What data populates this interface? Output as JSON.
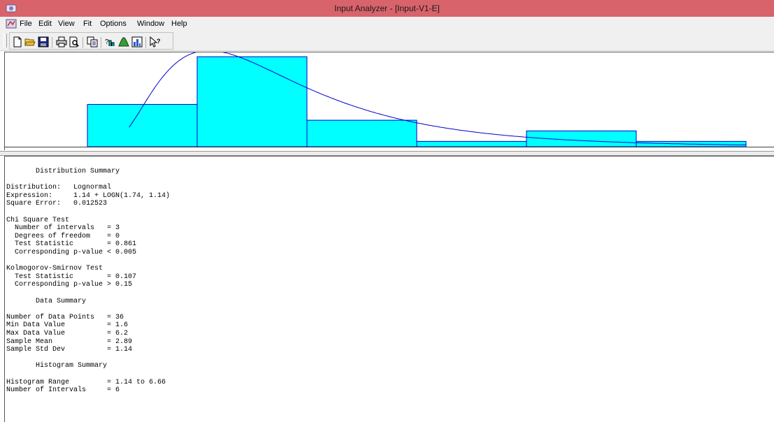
{
  "window": {
    "title": "Input Analyzer - [Input-V1-E]"
  },
  "menu": {
    "items": [
      "File",
      "Edit",
      "View",
      "Fit",
      "Options",
      "Window",
      "Help"
    ]
  },
  "toolbar": {
    "buttons": [
      "new-icon",
      "open-folder-icon",
      "save-icon",
      "print-icon",
      "print-preview-icon",
      "copy-icon",
      "fit-icon",
      "distribution-icon",
      "histogram-icon",
      "help-pointer-icon"
    ]
  },
  "colors": {
    "titlebar": "#d9636b",
    "histogram_fill": "#00ffff",
    "histogram_edge": "#0000cc",
    "curve": "#0000cc"
  },
  "chart_data": {
    "type": "bar",
    "histogram_range": [
      1.14,
      6.66
    ],
    "bin_edges": [
      1.14,
      2.06,
      2.98,
      3.9,
      4.82,
      5.74,
      6.66
    ],
    "values": [
      0.222,
      0.472,
      0.139,
      0.028,
      0.083,
      0.028
    ],
    "ylim": [
      0,
      0.48
    ],
    "fitted_curve": {
      "distribution": "Lognormal",
      "offset": 1.14,
      "mean": 1.74,
      "std": 1.14
    }
  },
  "summary": {
    "lines": [
      "       Distribution Summary",
      "",
      "Distribution:   Lognormal",
      "Expression:     1.14 + LOGN(1.74, 1.14)",
      "Square Error:   0.012523",
      "",
      "Chi Square Test",
      "  Number of intervals   = 3",
      "  Degrees of freedom    = 0",
      "  Test Statistic        = 0.861",
      "  Corresponding p-value < 0.005",
      "",
      "Kolmogorov-Smirnov Test",
      "  Test Statistic        = 0.107",
      "  Corresponding p-value > 0.15",
      "",
      "       Data Summary",
      "",
      "Number of Data Points   = 36",
      "Min Data Value          = 1.6",
      "Max Data Value          = 6.2",
      "Sample Mean             = 2.89",
      "Sample Std Dev          = 1.14",
      "",
      "       Histogram Summary",
      "",
      "Histogram Range         = 1.14 to 6.66",
      "Number of Intervals     = 6"
    ]
  }
}
